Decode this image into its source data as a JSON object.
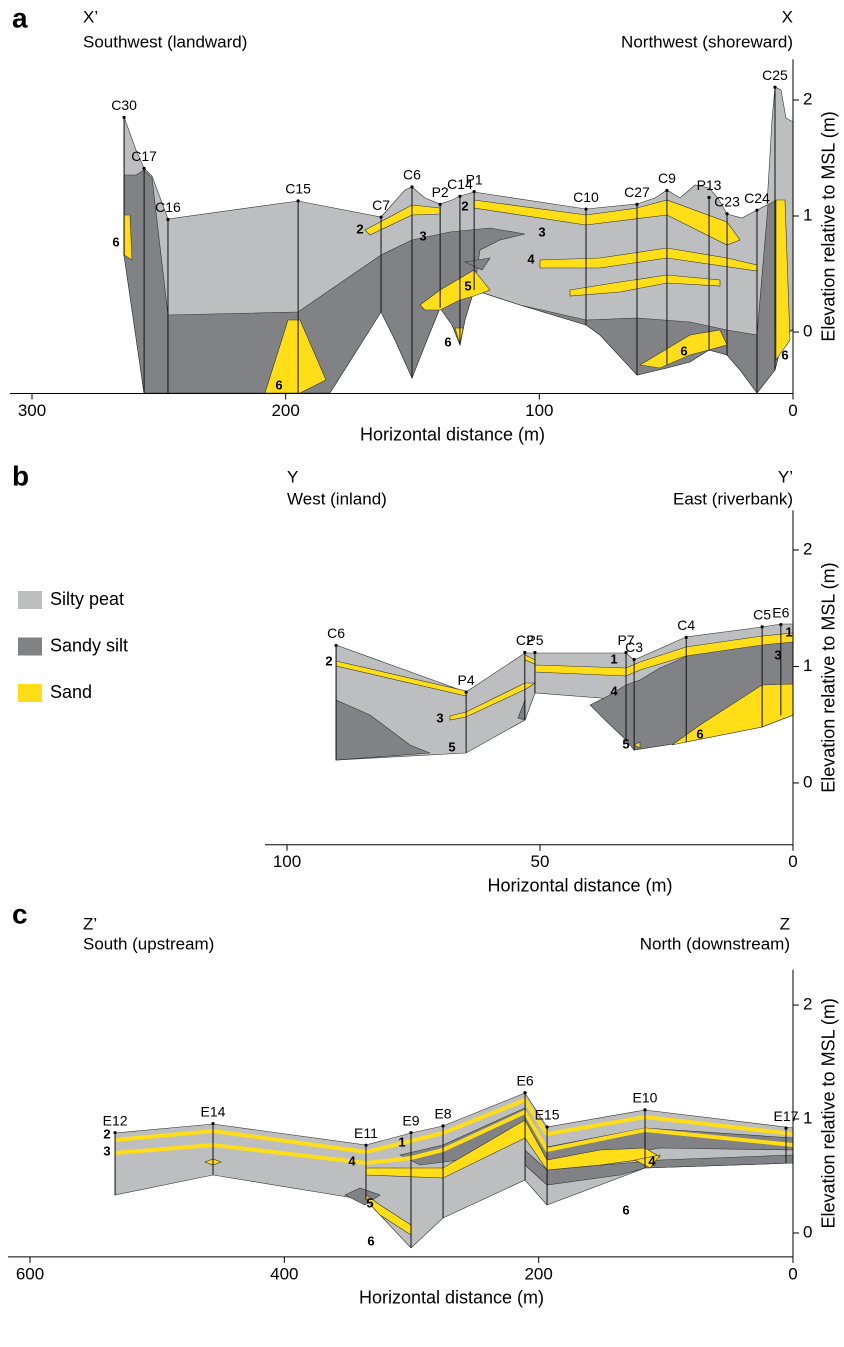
{
  "chart_data": [
    {
      "type": "cross-section",
      "panel_label": "a",
      "left_label": "X’",
      "left_direction": "Southwest (landward)",
      "right_label": "X",
      "right_direction": "Northwest (shoreward)",
      "x_label": "Horizontal distance (m)",
      "y_label": "Elevation relative to MSL (m)",
      "xlim": [
        300,
        0
      ],
      "xticks": [
        300,
        200,
        100,
        0
      ],
      "ylim": [
        -0.53,
        2.35
      ],
      "yticks": [
        0,
        1,
        2
      ],
      "cores": {
        "names": [
          "C30",
          "C17",
          "C16",
          "C15",
          "C7",
          "C6",
          "P2",
          "C14",
          "P1",
          "C10",
          "C27",
          "C9",
          "P13",
          "C23",
          "C24",
          "C25"
        ],
        "x": [
          263.7,
          255.8,
          246.4,
          195.1,
          162.4,
          150.2,
          139.1,
          131.3,
          125.7,
          81.6,
          61.5,
          49.7,
          33.1,
          26.0,
          14.2,
          7.1
        ],
        "top": [
          1.85,
          1.41,
          0.97,
          1.13,
          0.99,
          1.25,
          1.1,
          1.17,
          1.21,
          1.06,
          1.1,
          1.22,
          1.16,
          1.02,
          1.05,
          2.11
        ],
        "bottom": [
          0.66,
          -0.53,
          -0.53,
          -0.53,
          0.17,
          -0.4,
          0.21,
          -0.11,
          0.36,
          0.06,
          -0.37,
          -0.28,
          -0.16,
          -0.2,
          -0.53,
          -0.33
        ]
      },
      "layer_labels": [
        "6",
        "2",
        "3",
        "2",
        "3",
        "4",
        "5",
        "6",
        "6",
        "6",
        "6"
      ]
    },
    {
      "type": "cross-section",
      "panel_label": "b",
      "left_label": "Y",
      "left_direction": "West (inland)",
      "right_label": "Y’",
      "right_direction": "East (riverbank)",
      "x_label": "Horizontal distance (m)",
      "y_label": "Elevation relative to MSL (m)",
      "xlim": [
        100,
        0
      ],
      "xticks": [
        100,
        50,
        0
      ],
      "ylim": [
        -0.53,
        2.34
      ],
      "yticks": [
        0,
        1,
        2
      ],
      "cores": {
        "names": [
          "C6",
          "P4",
          "C2",
          "P5",
          "P7",
          "C3",
          "C4",
          "C5",
          "E6"
        ],
        "x": [
          90.3,
          64.6,
          53.0,
          51.0,
          33.0,
          31.4,
          21.1,
          6.1,
          2.4
        ],
        "top": [
          1.18,
          0.78,
          1.12,
          1.12,
          1.12,
          1.06,
          1.25,
          1.34,
          1.36
        ],
        "bottom": [
          0.2,
          0.26,
          0.54,
          0.77,
          0.34,
          0.28,
          0.35,
          0.48,
          0.58
        ]
      },
      "layer_labels": [
        "2",
        "3",
        "5",
        "1",
        "4",
        "5",
        "6",
        "1",
        "3"
      ],
      "legend": [
        {
          "name": "Silty peat",
          "color": "#bcbec0"
        },
        {
          "name": "Sandy silt",
          "color": "#808285"
        },
        {
          "name": "Sand",
          "color": "#ffde17"
        }
      ]
    },
    {
      "type": "cross-section",
      "panel_label": "c",
      "left_label": "Z’",
      "left_direction": "South (upstream)",
      "right_label": "Z",
      "right_direction": "North (downstream)",
      "x_label": "Horizontal distance (m)",
      "y_label": "Elevation relative to MSL (m)",
      "xlim": [
        600,
        0
      ],
      "xticks": [
        600,
        400,
        200,
        0
      ],
      "ylim": [
        -0.21,
        2.31
      ],
      "yticks": [
        0,
        1,
        2
      ],
      "cores": {
        "names": [
          "E12",
          "E14",
          "E11",
          "E9",
          "E8",
          "E6",
          "E15",
          "E10",
          "E17"
        ],
        "x": [
          533.1,
          456.1,
          335.8,
          300.4,
          275.2,
          210.7,
          193.4,
          116.4,
          5.5
        ],
        "top": [
          0.88,
          0.96,
          0.77,
          0.88,
          0.94,
          1.23,
          0.93,
          1.08,
          0.92
        ],
        "bottom": [
          0.33,
          0.51,
          0.29,
          -0.13,
          0.13,
          0.46,
          0.25,
          0.57,
          0.61
        ]
      },
      "layer_labels": [
        "2",
        "3",
        "4",
        "1",
        "5",
        "6",
        "4",
        "6"
      ]
    }
  ]
}
